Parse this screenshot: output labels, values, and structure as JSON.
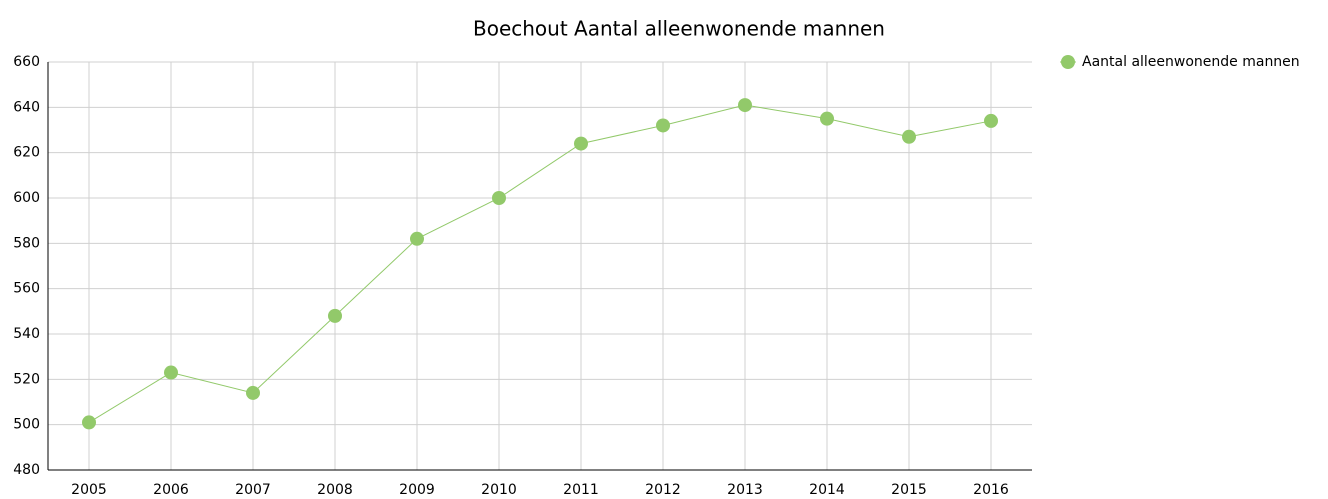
{
  "chart_data": {
    "type": "line",
    "title": "Boechout  Aantal alleenwonende mannen",
    "categories": [
      "2005",
      "2006",
      "2007",
      "2008",
      "2009",
      "2010",
      "2011",
      "2012",
      "2013",
      "2014",
      "2015",
      "2016"
    ],
    "series": [
      {
        "name": "Aantal alleenwonende mannen",
        "color": "#92c96a",
        "values": [
          501,
          523,
          514,
          548,
          582,
          600,
          624,
          632,
          641,
          635,
          627,
          634
        ]
      }
    ],
    "ylim": [
      480,
      660
    ],
    "yticks": [
      480,
      500,
      520,
      540,
      560,
      580,
      600,
      620,
      640,
      660
    ],
    "grid": true,
    "legend": "top-right"
  }
}
